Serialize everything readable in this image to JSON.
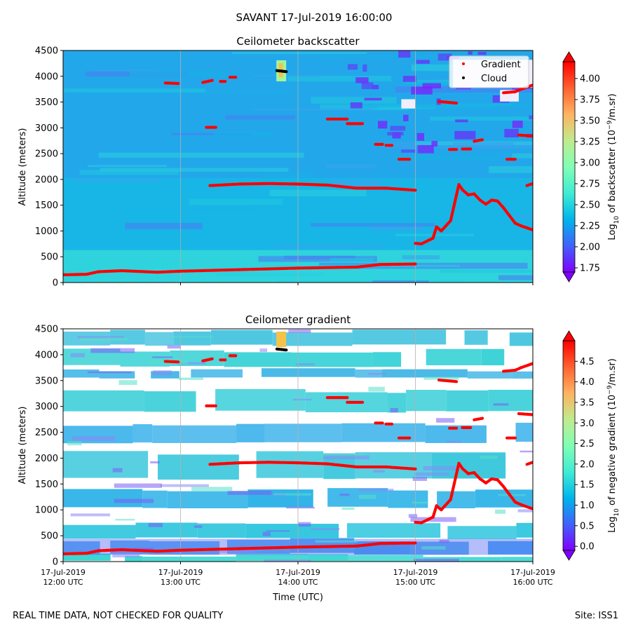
{
  "figure": {
    "title": "SAVANT 17-Jul-2019 16:00:00",
    "footer_left": "REAL TIME DATA, NOT CHECKED FOR QUALITY",
    "footer_right": "Site: ISS1"
  },
  "chart_data": [
    {
      "type": "heatmap",
      "title": "Ceilometer backscatter",
      "xlabel": "",
      "ylabel": "Altitude (meters)",
      "xlim": [
        12.0,
        16.0
      ],
      "ylim": [
        0,
        4500
      ],
      "y_ticks": [
        0,
        500,
        1000,
        1500,
        2000,
        2500,
        3000,
        3500,
        4000,
        4500
      ],
      "x_ticks": [
        12,
        13,
        14,
        15,
        16
      ],
      "x_tick_labels": [],
      "grid": "vertical",
      "colormap": "rainbow",
      "colorbar": {
        "label_prefix": "Log",
        "label_sub": "10",
        "label_mid": " of backscatter (10",
        "label_sup": "−9",
        "label_suffix": "/m.sr)",
        "range": [
          1.7,
          4.2
        ],
        "ticks": [
          1.75,
          2.0,
          2.25,
          2.5,
          2.75,
          3.0,
          3.25,
          3.5,
          3.75,
          4.0
        ],
        "tick_labels": [
          "1.75",
          "2.00",
          "2.25",
          "2.50",
          "2.75",
          "3.00",
          "3.25",
          "3.50",
          "3.75",
          "4.00"
        ],
        "extend": "both"
      },
      "legend": {
        "placement": "top-right",
        "entries": [
          {
            "label": "Gradient",
            "color": "#ff0000"
          },
          {
            "label": "Cloud",
            "color": "#000000"
          }
        ]
      }
    },
    {
      "type": "heatmap",
      "title": "Ceilometer gradient",
      "xlabel": "Time (UTC)",
      "ylabel": "Altitude (meters)",
      "xlim": [
        12.0,
        16.0
      ],
      "ylim": [
        0,
        4500
      ],
      "y_ticks": [
        0,
        500,
        1000,
        1500,
        2000,
        2500,
        3000,
        3500,
        4000,
        4500
      ],
      "x_ticks": [
        12,
        13,
        14,
        15,
        16
      ],
      "x_tick_labels": [
        [
          "17-Jul-2019",
          "12:00 UTC"
        ],
        [
          "17-Jul-2019",
          "13:00 UTC"
        ],
        [
          "17-Jul-2019",
          "14:00 UTC"
        ],
        [
          "17-Jul-2019",
          "15:00 UTC"
        ],
        [
          "17-Jul-2019",
          "16:00 UTC"
        ]
      ],
      "grid": "vertical",
      "colormap": "rainbow",
      "colorbar": {
        "label_prefix": "Log",
        "label_sub": "10",
        "label_mid": " of negative gradient (10",
        "label_sup": "−9",
        "label_suffix": "/m.sr)",
        "range": [
          -0.1,
          5.0
        ],
        "ticks": [
          0.0,
          0.5,
          1.0,
          1.5,
          2.0,
          2.5,
          3.0,
          3.5,
          4.0,
          4.5
        ],
        "tick_labels": [
          "0.0",
          "0.5",
          "1.0",
          "1.5",
          "2.0",
          "2.5",
          "3.0",
          "3.5",
          "4.0",
          "4.5"
        ],
        "extend": "both"
      }
    }
  ],
  "gradient_series": {
    "name": "Gradient",
    "segments": [
      {
        "x": [
          12.0,
          12.2,
          12.3,
          12.5,
          12.8,
          13.0,
          13.5,
          14.0,
          14.5,
          14.7,
          15.0
        ],
        "y": [
          150,
          160,
          210,
          230,
          200,
          220,
          250,
          280,
          300,
          350,
          360
        ]
      },
      {
        "x": [
          13.25,
          13.5,
          13.75,
          14.0,
          14.25,
          14.5,
          14.75,
          15.0
        ],
        "y": [
          1880,
          1910,
          1920,
          1910,
          1890,
          1830,
          1830,
          1790
        ]
      },
      {
        "x": [
          12.87,
          12.98
        ],
        "y": [
          3870,
          3860
        ]
      },
      {
        "x": [
          13.19,
          13.27
        ],
        "y": [
          3880,
          3920
        ]
      },
      {
        "x": [
          13.34,
          13.38
        ],
        "y": [
          3900,
          3900
        ]
      },
      {
        "x": [
          13.42,
          13.47
        ],
        "y": [
          3980,
          3980
        ]
      },
      {
        "x": [
          13.22,
          13.3
        ],
        "y": [
          3010,
          3010
        ]
      },
      {
        "x": [
          14.25,
          14.42
        ],
        "y": [
          3170,
          3170
        ]
      },
      {
        "x": [
          14.42,
          14.55
        ],
        "y": [
          3080,
          3080
        ]
      },
      {
        "x": [
          14.66,
          14.72
        ],
        "y": [
          2680,
          2680
        ]
      },
      {
        "x": [
          14.75,
          14.8
        ],
        "y": [
          2660,
          2660
        ]
      },
      {
        "x": [
          14.86,
          14.95
        ],
        "y": [
          2390,
          2390
        ]
      },
      {
        "x": [
          15.2,
          15.35
        ],
        "y": [
          3510,
          3480
        ]
      },
      {
        "x": [
          15.29,
          15.35
        ],
        "y": [
          2580,
          2580
        ]
      },
      {
        "x": [
          15.4,
          15.47
        ],
        "y": [
          2590,
          2590
        ]
      },
      {
        "x": [
          15.5,
          15.57
        ],
        "y": [
          2740,
          2770
        ]
      },
      {
        "x": [
          15.78,
          15.85
        ],
        "y": [
          2390,
          2390
        ]
      },
      {
        "x": [
          15.75,
          15.85,
          15.9,
          16.0
        ],
        "y": [
          3680,
          3700,
          3750,
          3830
        ]
      },
      {
        "x": [
          15.88,
          16.0
        ],
        "y": [
          2860,
          2840
        ]
      },
      {
        "x": [
          15.95,
          16.0
        ],
        "y": [
          1880,
          1920
        ]
      },
      {
        "x": [
          15.0,
          15.05,
          15.15,
          15.18,
          15.22,
          15.3,
          15.33,
          15.37,
          15.4,
          15.45,
          15.5,
          15.55,
          15.6,
          15.65,
          15.7,
          15.75,
          15.8,
          15.85,
          15.9,
          15.95,
          16.0
        ],
        "y": [
          760,
          750,
          860,
          1080,
          1000,
          1200,
          1500,
          1900,
          1800,
          1700,
          1720,
          1600,
          1520,
          1600,
          1580,
          1450,
          1300,
          1150,
          1100,
          1060,
          1020
        ]
      }
    ]
  },
  "cloud_series": {
    "name": "Cloud",
    "segments": [
      {
        "x": [
          13.82,
          13.9
        ],
        "y": [
          4110,
          4090
        ]
      }
    ]
  }
}
